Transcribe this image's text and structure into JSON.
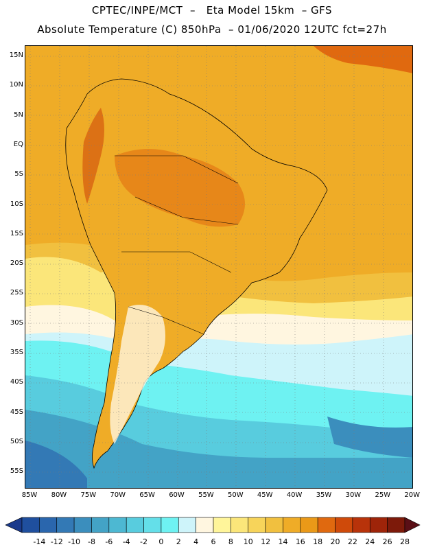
{
  "header": {
    "line1": "CPTEC/INPE/MCT  –   Eta Model 15km  – GFS",
    "line2": "Absolute Temperature (C) 850hPa  – 01/06/2020 12UTC fct=27h"
  },
  "axes": {
    "lat_ticks": [
      "15N",
      "10N",
      "5N",
      "EQ",
      "5S",
      "10S",
      "15S",
      "20S",
      "25S",
      "30S",
      "35S",
      "40S",
      "45S",
      "50S",
      "55S"
    ],
    "lon_ticks": [
      "85W",
      "80W",
      "75W",
      "70W",
      "65W",
      "60W",
      "55W",
      "50W",
      "45W",
      "40W",
      "35W",
      "30W",
      "25W",
      "20W"
    ]
  },
  "colorbar": {
    "labels": [
      "-14",
      "-12",
      "-10",
      "-8",
      "-6",
      "-4",
      "-2",
      "0",
      "2",
      "4",
      "6",
      "8",
      "10",
      "12",
      "14",
      "16",
      "18",
      "20",
      "22",
      "24",
      "26",
      "28"
    ],
    "colors": [
      "#1a3a8c",
      "#1f4f9e",
      "#2a66ad",
      "#3379b5",
      "#3b8ebd",
      "#43a3c6",
      "#4db8d2",
      "#58ccde",
      "#64dfe9",
      "#6ef2f2",
      "#cef4fa",
      "#fff6e0",
      "#fff59a",
      "#fbe67a",
      "#f7d45a",
      "#f1c03f",
      "#efac27",
      "#ea9918",
      "#e0690f",
      "#cf4a0a",
      "#b8330a",
      "#9e2409",
      "#7d1a0a",
      "#5a0f16"
    ]
  },
  "palette": {
    "cold_deep": "#2a66ad",
    "cold_mid": "#3b8ebd",
    "cold_light": "#58ccde",
    "cyan": "#6ef2f2",
    "pale": "#fff6e0",
    "yellow": "#fbe67a",
    "light_orange": "#f1c03f",
    "orange": "#efac27",
    "dark_orange": "#e0690f"
  }
}
